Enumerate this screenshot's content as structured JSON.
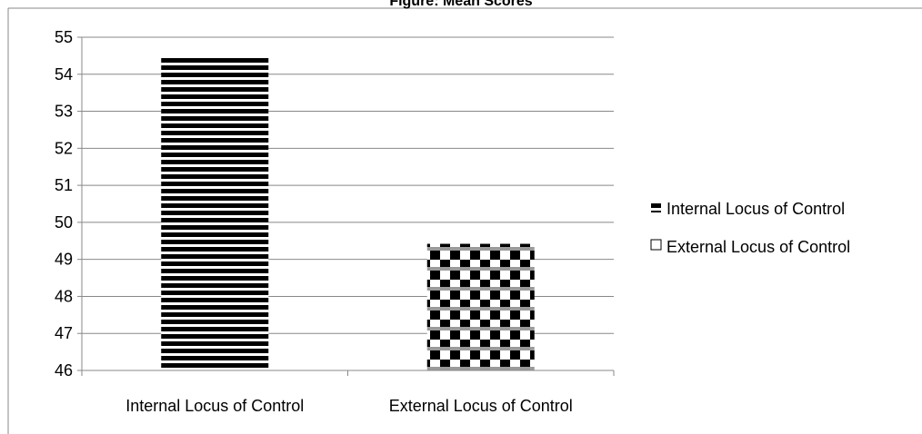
{
  "chart_data": {
    "type": "bar",
    "title": "Figure: Mean Scores",
    "xlabel": "",
    "ylabel": "",
    "categories": [
      "Internal Locus of Control",
      "External Locus of Control"
    ],
    "series": [
      {
        "name": "Internal Locus of Control",
        "values": [
          54.45,
          null
        ],
        "pattern": "horizontal-stripes",
        "color": "#000000"
      },
      {
        "name": "External Locus of Control",
        "values": [
          null,
          49.42
        ],
        "pattern": "checkered",
        "color": "#000000"
      }
    ],
    "ylim": [
      46,
      55
    ],
    "yticks": [
      "46",
      "47",
      "48",
      "49",
      "50",
      "51",
      "52",
      "53",
      "54",
      "55"
    ],
    "grid": true,
    "legend_position": "right",
    "colors": {
      "axis": "#888888",
      "grid": "#888888",
      "bar": "#000000"
    }
  }
}
